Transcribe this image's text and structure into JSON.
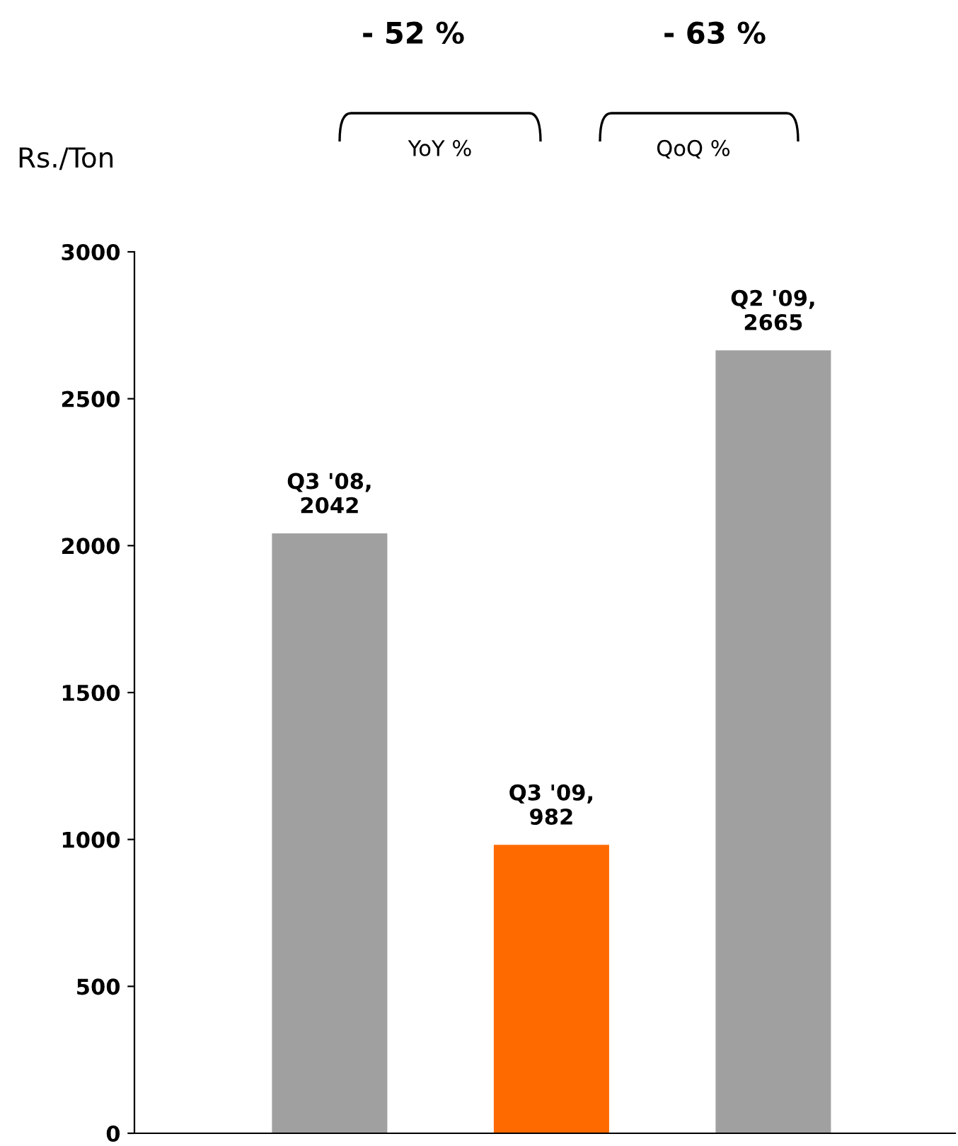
{
  "chart_data": {
    "type": "bar",
    "ylabel": "Rs./Ton",
    "categories": [
      null,
      null,
      null
    ],
    "values": [
      2042,
      982,
      2665
    ],
    "colors": [
      "#a0a0a0",
      "#ff6a00",
      "#a0a0a0"
    ],
    "value_labels": [
      "Q3 '08,\n2042",
      "Q3 '09,\n982",
      "Q2 '09,\n2665"
    ],
    "ylim": [
      0,
      3000
    ],
    "yticks": [
      0,
      500,
      1000,
      1500,
      2000,
      2500,
      3000
    ],
    "grid": false,
    "legend": false,
    "annotations": [
      "- 52 %",
      "- 63 %",
      "YoY %",
      "QoQ %"
    ]
  }
}
